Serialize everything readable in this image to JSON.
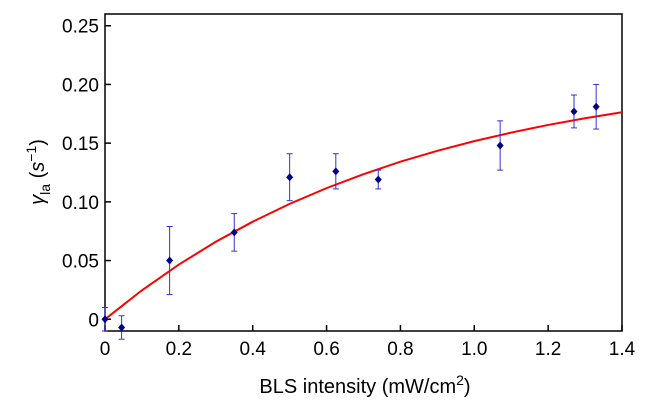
{
  "chart_data": {
    "type": "scatter",
    "xlabel": "BLS intensity (mW/cm",
    "xlabel_sup": "2",
    "xlabel_suffix": ")",
    "ylabel_symbol": "γ",
    "ylabel_sub": "la",
    "ylabel_open": " (",
    "ylabel_unit": "s",
    "ylabel_sup": "−1",
    "ylabel_close": ")",
    "xlim": [
      0,
      1.4
    ],
    "ylim": [
      -0.01,
      0.26
    ],
    "xticks": [
      0,
      0.2,
      0.4,
      0.6,
      0.8,
      1.0,
      1.2,
      1.4
    ],
    "xtick_labels": [
      "0",
      "0.2",
      "0.4",
      "0.6",
      "0.8",
      "1.0",
      "1.2",
      "1.4"
    ],
    "yticks": [
      0,
      0.05,
      0.1,
      0.15,
      0.2,
      0.25
    ],
    "ytick_labels": [
      "0",
      "0.05",
      "0.10",
      "0.15",
      "0.20",
      "0.25"
    ],
    "grid": false,
    "series": [
      {
        "type": "scatter",
        "color": "#00008b",
        "points": [
          {
            "x": 0.0,
            "y": 0.0,
            "yerr": 0.01
          },
          {
            "x": 0.045,
            "y": -0.007,
            "yerr": 0.01
          },
          {
            "x": 0.175,
            "y": 0.05,
            "yerr": 0.029
          },
          {
            "x": 0.35,
            "y": 0.074,
            "yerr": 0.016
          },
          {
            "x": 0.5,
            "y": 0.121,
            "yerr": 0.02
          },
          {
            "x": 0.625,
            "y": 0.126,
            "yerr": 0.015
          },
          {
            "x": 0.74,
            "y": 0.119,
            "yerr": 0.008
          },
          {
            "x": 1.07,
            "y": 0.148,
            "yerr": 0.021
          },
          {
            "x": 1.27,
            "y": 0.177,
            "yerr": 0.014
          },
          {
            "x": 1.33,
            "y": 0.181,
            "yerr": 0.019
          }
        ]
      },
      {
        "type": "line",
        "color": "#ff0000",
        "x": [
          0,
          0.1,
          0.2,
          0.3,
          0.4,
          0.5,
          0.6,
          0.7,
          0.8,
          0.9,
          1.0,
          1.1,
          1.2,
          1.3,
          1.4
        ],
        "y": [
          0.0,
          0.0247,
          0.0466,
          0.066,
          0.0831,
          0.0983,
          0.1117,
          0.1236,
          0.1342,
          0.1435,
          0.1517,
          0.159,
          0.1655,
          0.1712,
          0.1763
        ]
      }
    ]
  }
}
